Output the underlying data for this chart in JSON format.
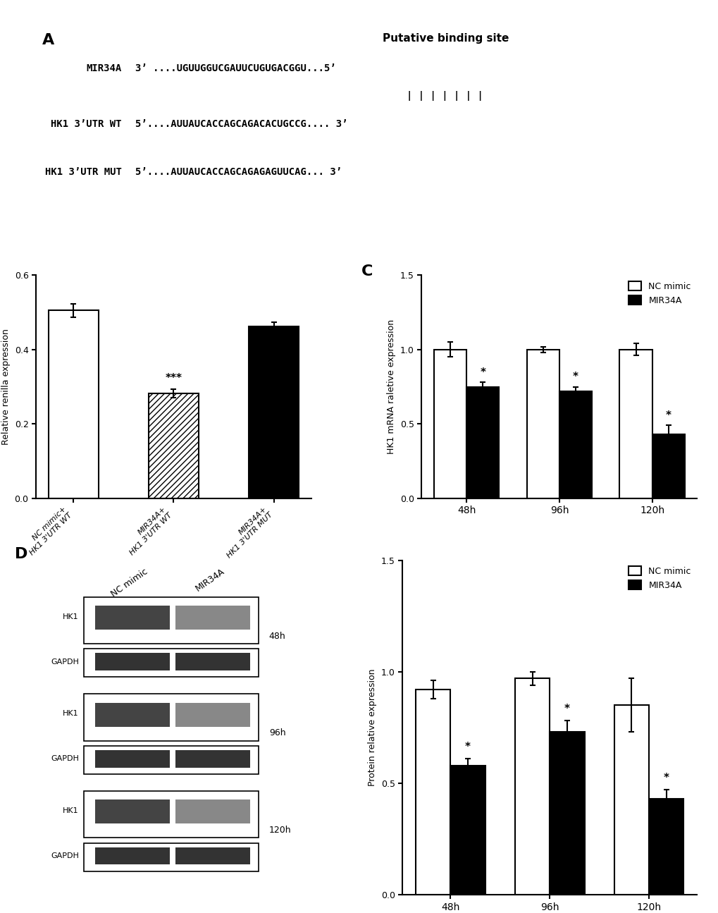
{
  "panel_A": {
    "title": "Putative binding site",
    "mir34a_label": "MIR34A",
    "mir34a_seq": "3’ ....UGUUGGUCGAUUCUGUGACGGU...5’",
    "pipes": "| | | | | | |",
    "hk1_wt_label": "HK1 3’UTR WT",
    "hk1_wt_seq": "5’....AUUAUCACCAGCAGACACUGCCG.... 3’",
    "hk1_mut_label": "HK1 3’UTR MUT",
    "hk1_mut_seq": "5’....AUUAUCACCAGCAGAGAGUUCAG... 3’"
  },
  "panel_B": {
    "ylabel": "Relative renilla expression",
    "ylim": [
      0,
      0.6
    ],
    "yticks": [
      0.0,
      0.2,
      0.4,
      0.6
    ],
    "categories": [
      "NC mimic+HK1 3'UTR WT",
      "MIR34A+HK1 3'UTR WT",
      "MIR34A+HK1 3'UTR MUT"
    ],
    "values": [
      0.505,
      0.282,
      0.463
    ],
    "errors": [
      0.018,
      0.012,
      0.01
    ],
    "bar_colors": [
      "white",
      "hatch",
      "black"
    ],
    "significance": [
      "",
      "***",
      ""
    ],
    "bar_width": 0.5,
    "edge_color": "black"
  },
  "panel_C": {
    "ylabel": "HK1 mRNA raletive expression",
    "ylim": [
      0,
      1.5
    ],
    "yticks": [
      0.0,
      0.5,
      1.0,
      1.5
    ],
    "timepoints": [
      "48h",
      "96h",
      "120h"
    ],
    "nc_values": [
      1.0,
      1.0,
      1.0
    ],
    "mir_values": [
      0.75,
      0.72,
      0.43
    ],
    "nc_errors": [
      0.05,
      0.02,
      0.04
    ],
    "mir_errors": [
      0.03,
      0.03,
      0.06
    ],
    "significance": [
      "*",
      "*",
      "*"
    ],
    "legend_labels": [
      "NC mimic",
      "MIR34A"
    ]
  },
  "panel_D_right": {
    "ylabel": "Protein relative expression",
    "ylim": [
      0,
      1.5
    ],
    "yticks": [
      0.0,
      0.5,
      1.0,
      1.5
    ],
    "timepoints": [
      "48h",
      "96h",
      "120h"
    ],
    "nc_values": [
      0.92,
      0.97,
      0.85
    ],
    "mir_values": [
      0.58,
      0.73,
      0.43
    ],
    "nc_errors": [
      0.04,
      0.03,
      0.12
    ],
    "mir_errors": [
      0.03,
      0.05,
      0.04
    ],
    "significance": [
      "*",
      "*",
      "*"
    ],
    "legend_labels": [
      "NC mimic",
      "MIR34A"
    ]
  },
  "figure_bg": "white",
  "axis_color": "black",
  "text_color": "black",
  "bar_edge_width": 1.5
}
